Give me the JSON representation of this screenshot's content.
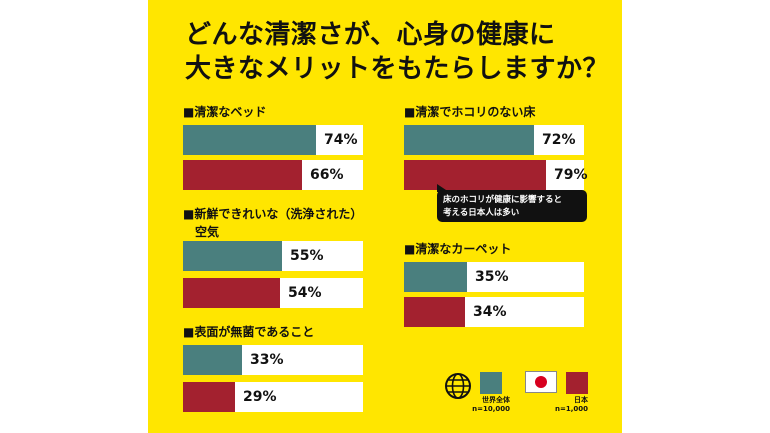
{
  "title_line1": "どんな清潔さが、心身の健康に",
  "title_line2": "大きなメリットをもたらしますか？",
  "colors": {
    "background": "#FFE600",
    "world": "#4A7F7E",
    "japan": "#A3212F"
  },
  "callout": {
    "line1": "床のホコリが健康に影響すると",
    "line2": "考える日本人は多い"
  },
  "legend": {
    "world": {
      "label": "世界全体",
      "n": "n=10,000",
      "icon": "globe-icon"
    },
    "japan": {
      "label": "日本",
      "n": "n=1,000",
      "icon": "japan-flag-icon"
    }
  },
  "chart_data": {
    "type": "bar",
    "orientation": "horizontal",
    "xlim": [
      0,
      100
    ],
    "series": [
      {
        "name": "世界全体",
        "values": [
          74,
          55,
          33,
          72,
          35
        ]
      },
      {
        "name": "日本",
        "values": [
          66,
          54,
          29,
          79,
          34
        ]
      }
    ],
    "categories": [
      {
        "label": "■清潔なベッド",
        "world": 74,
        "japan": 66,
        "world_label": "74%",
        "japan_label": "66%"
      },
      {
        "label": "■新鮮できれいな（洗浄された）",
        "label2": "空気",
        "world": 55,
        "japan": 54,
        "world_label": "55%",
        "japan_label": "54%"
      },
      {
        "label": "■表面が無菌であること",
        "world": 33,
        "japan": 29,
        "world_label": "33%",
        "japan_label": "29%"
      },
      {
        "label": "■清潔でホコリのない床",
        "world": 72,
        "japan": 79,
        "world_label": "72%",
        "japan_label": "79%"
      },
      {
        "label": "■清潔なカーペット",
        "world": 35,
        "japan": 34,
        "world_label": "35%",
        "japan_label": "34%"
      }
    ]
  }
}
